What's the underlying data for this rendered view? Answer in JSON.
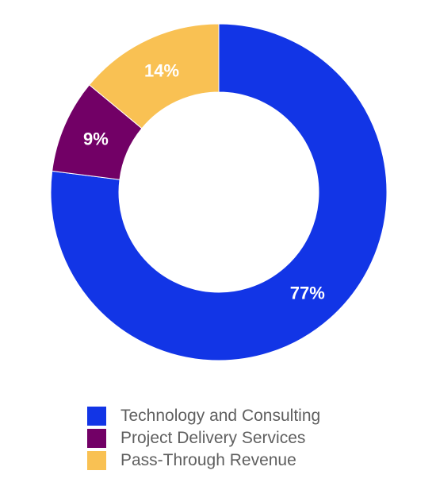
{
  "chart_data": {
    "type": "pie",
    "donut": true,
    "categories": [
      "Technology and Consulting",
      "Project Delivery Services",
      "Pass-Through Revenue"
    ],
    "values": [
      77,
      9,
      14
    ],
    "data_labels": [
      "77%",
      "9%",
      "14%"
    ],
    "colors": [
      "#1235e6",
      "#720066",
      "#f9c153"
    ],
    "legend_position": "bottom",
    "label_color": "#ffffff",
    "legend": [
      {
        "label": "Technology and Consulting",
        "color": "#1235e6"
      },
      {
        "label": "Project Delivery Services",
        "color": "#720066"
      },
      {
        "label": "Pass-Through Revenue",
        "color": "#f9c153"
      }
    ]
  }
}
